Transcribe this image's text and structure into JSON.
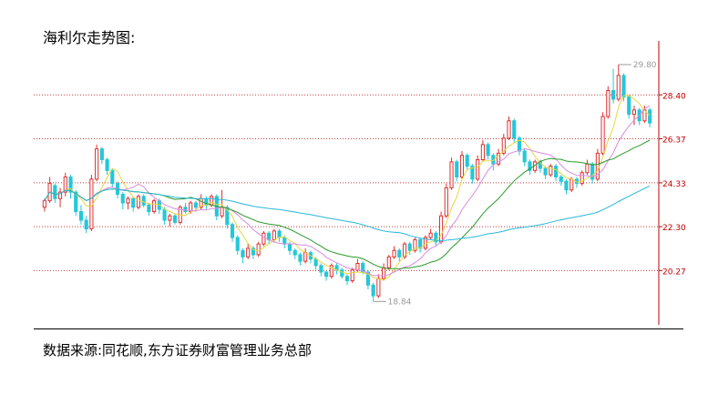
{
  "page": {
    "title": "海利尔走势图:",
    "source": "数据来源:同花顺,东方证券财富管理业务总部"
  },
  "chart_data": {
    "type": "candlestick",
    "title": "",
    "xlabel": "",
    "ylabel": "",
    "ylim": [
      17.8,
      30.6
    ],
    "y_ticks": [
      "20.27",
      "22.30",
      "24.33",
      "26.37",
      "28.40"
    ],
    "y_tick_values": [
      20.27,
      22.3,
      24.33,
      26.37,
      28.4
    ],
    "grid": true,
    "annotations": [
      {
        "label": "29.80",
        "value": 29.8,
        "marks": "period high"
      },
      {
        "label": "18.84",
        "value": 18.84,
        "marks": "period low"
      }
    ],
    "colors": {
      "up": "#e03030",
      "down": "#25c7d8",
      "ma5": "#e6d840",
      "ma10": "#d98ce0",
      "ma20": "#2b9a2b",
      "ma60": "#2ab8d8",
      "axis": "#c00000",
      "grid": "#c04040"
    },
    "candles": [
      [
        23.2,
        23.6,
        23.0,
        23.5
      ],
      [
        23.5,
        24.6,
        23.4,
        24.3
      ],
      [
        24.2,
        24.3,
        23.4,
        23.6
      ],
      [
        23.6,
        24.1,
        23.2,
        23.9
      ],
      [
        23.9,
        24.8,
        23.7,
        24.6
      ],
      [
        24.6,
        24.7,
        23.6,
        23.9
      ],
      [
        23.9,
        24.0,
        22.8,
        23.0
      ],
      [
        23.0,
        23.3,
        22.4,
        22.6
      ],
      [
        22.6,
        22.8,
        22.0,
        22.2
      ],
      [
        22.2,
        24.7,
        22.1,
        24.5
      ],
      [
        24.5,
        26.1,
        24.4,
        25.9
      ],
      [
        25.9,
        26.0,
        25.2,
        25.4
      ],
      [
        25.4,
        25.5,
        24.7,
        24.9
      ],
      [
        24.9,
        25.0,
        24.1,
        24.3
      ],
      [
        24.3,
        24.4,
        23.6,
        23.8
      ],
      [
        23.8,
        23.9,
        23.1,
        23.4
      ],
      [
        23.4,
        23.7,
        23.1,
        23.6
      ],
      [
        23.6,
        23.7,
        23.0,
        23.2
      ],
      [
        23.2,
        23.8,
        23.1,
        23.7
      ],
      [
        23.7,
        23.8,
        23.2,
        23.3
      ],
      [
        23.3,
        23.4,
        22.8,
        23.0
      ],
      [
        23.0,
        23.6,
        22.9,
        23.5
      ],
      [
        23.5,
        23.6,
        22.9,
        23.1
      ],
      [
        23.1,
        23.2,
        22.4,
        22.6
      ],
      [
        22.6,
        22.9,
        22.3,
        22.8
      ],
      [
        22.8,
        22.9,
        22.4,
        22.5
      ],
      [
        22.5,
        23.3,
        22.4,
        23.2
      ],
      [
        23.2,
        23.4,
        22.9,
        23.0
      ],
      [
        23.0,
        23.5,
        22.9,
        23.4
      ],
      [
        23.4,
        23.5,
        23.0,
        23.2
      ],
      [
        23.2,
        23.8,
        23.1,
        23.6
      ],
      [
        23.6,
        23.7,
        23.1,
        23.3
      ],
      [
        23.3,
        23.8,
        23.2,
        23.7
      ],
      [
        23.7,
        23.8,
        22.6,
        22.8
      ],
      [
        22.8,
        24.0,
        22.7,
        23.2
      ],
      [
        23.2,
        23.3,
        22.2,
        22.4
      ],
      [
        22.4,
        22.5,
        21.6,
        21.8
      ],
      [
        21.8,
        21.9,
        21.0,
        21.2
      ],
      [
        21.2,
        21.3,
        20.6,
        20.9
      ],
      [
        20.9,
        21.5,
        20.8,
        21.3
      ],
      [
        21.3,
        21.4,
        20.8,
        21.0
      ],
      [
        21.0,
        21.6,
        20.9,
        21.5
      ],
      [
        21.5,
        22.1,
        21.4,
        22.0
      ],
      [
        22.0,
        22.1,
        21.5,
        21.7
      ],
      [
        21.7,
        22.2,
        21.6,
        22.1
      ],
      [
        22.1,
        22.2,
        21.6,
        21.8
      ],
      [
        21.8,
        21.9,
        21.3,
        21.5
      ],
      [
        21.5,
        21.6,
        21.0,
        21.2
      ],
      [
        21.2,
        21.3,
        20.8,
        21.0
      ],
      [
        21.0,
        21.1,
        20.5,
        20.7
      ],
      [
        20.7,
        21.3,
        20.6,
        21.1
      ],
      [
        21.1,
        21.2,
        20.6,
        20.8
      ],
      [
        20.8,
        20.9,
        20.3,
        20.5
      ],
      [
        20.5,
        20.6,
        20.0,
        20.2
      ],
      [
        20.2,
        20.3,
        19.8,
        20.0
      ],
      [
        20.0,
        20.6,
        19.9,
        20.5
      ],
      [
        20.5,
        20.6,
        20.1,
        20.3
      ],
      [
        20.3,
        20.4,
        19.9,
        20.0
      ],
      [
        20.0,
        20.1,
        19.6,
        19.8
      ],
      [
        19.8,
        20.4,
        19.7,
        20.3
      ],
      [
        20.3,
        20.8,
        20.2,
        20.6
      ],
      [
        20.6,
        20.7,
        20.1,
        20.2
      ],
      [
        20.2,
        20.3,
        19.4,
        19.6
      ],
      [
        19.6,
        19.7,
        18.84,
        19.1
      ],
      [
        19.1,
        20.1,
        19.0,
        19.9
      ],
      [
        19.9,
        20.6,
        19.8,
        20.4
      ],
      [
        20.4,
        21.0,
        20.3,
        20.9
      ],
      [
        20.9,
        21.4,
        20.8,
        21.2
      ],
      [
        21.2,
        21.3,
        20.7,
        20.9
      ],
      [
        20.9,
        21.6,
        20.8,
        21.5
      ],
      [
        21.5,
        21.6,
        21.0,
        21.2
      ],
      [
        21.2,
        21.8,
        21.1,
        21.7
      ],
      [
        21.7,
        21.8,
        21.1,
        21.3
      ],
      [
        21.3,
        21.9,
        21.2,
        21.8
      ],
      [
        21.8,
        22.2,
        21.7,
        22.0
      ],
      [
        22.0,
        22.1,
        21.4,
        21.6
      ],
      [
        21.6,
        23.0,
        21.5,
        22.8
      ],
      [
        22.8,
        24.3,
        22.7,
        24.1
      ],
      [
        24.1,
        25.5,
        24.0,
        25.3
      ],
      [
        25.3,
        25.4,
        24.4,
        24.6
      ],
      [
        24.6,
        25.8,
        24.5,
        25.6
      ],
      [
        25.6,
        25.7,
        24.9,
        25.1
      ],
      [
        25.1,
        25.2,
        24.3,
        24.5
      ],
      [
        24.5,
        25.6,
        24.4,
        25.4
      ],
      [
        25.4,
        26.3,
        25.3,
        26.1
      ],
      [
        26.1,
        26.2,
        25.4,
        25.6
      ],
      [
        25.6,
        25.7,
        24.9,
        25.2
      ],
      [
        25.2,
        25.9,
        25.1,
        25.7
      ],
      [
        25.7,
        26.6,
        25.6,
        26.4
      ],
      [
        26.4,
        27.4,
        26.3,
        27.2
      ],
      [
        27.2,
        27.3,
        26.2,
        26.4
      ],
      [
        26.4,
        26.5,
        25.6,
        25.8
      ],
      [
        25.8,
        25.9,
        25.1,
        25.3
      ],
      [
        25.3,
        25.4,
        24.7,
        24.9
      ],
      [
        24.9,
        25.4,
        24.8,
        25.3
      ],
      [
        25.3,
        25.4,
        24.8,
        25.0
      ],
      [
        25.0,
        25.1,
        24.5,
        24.7
      ],
      [
        24.7,
        25.2,
        24.6,
        25.1
      ],
      [
        25.1,
        25.2,
        24.4,
        24.6
      ],
      [
        24.6,
        24.7,
        24.2,
        24.4
      ],
      [
        24.4,
        24.5,
        23.8,
        24.0
      ],
      [
        24.0,
        24.6,
        23.9,
        24.5
      ],
      [
        24.5,
        24.6,
        24.1,
        24.3
      ],
      [
        24.3,
        24.9,
        24.2,
        24.8
      ],
      [
        24.8,
        25.4,
        24.7,
        25.2
      ],
      [
        25.2,
        25.3,
        24.3,
        24.5
      ],
      [
        24.5,
        25.9,
        24.4,
        25.7
      ],
      [
        25.7,
        27.6,
        25.6,
        27.4
      ],
      [
        27.4,
        28.8,
        27.3,
        28.6
      ],
      [
        28.6,
        29.6,
        28.0,
        28.2
      ],
      [
        28.2,
        29.8,
        28.1,
        29.3
      ],
      [
        29.3,
        29.4,
        28.1,
        28.3
      ],
      [
        28.3,
        28.4,
        27.3,
        27.5
      ],
      [
        27.5,
        27.9,
        27.0,
        27.7
      ],
      [
        27.7,
        27.8,
        27.0,
        27.2
      ],
      [
        27.2,
        27.9,
        27.1,
        27.7
      ],
      [
        27.7,
        27.8,
        26.9,
        27.1
      ]
    ]
  }
}
